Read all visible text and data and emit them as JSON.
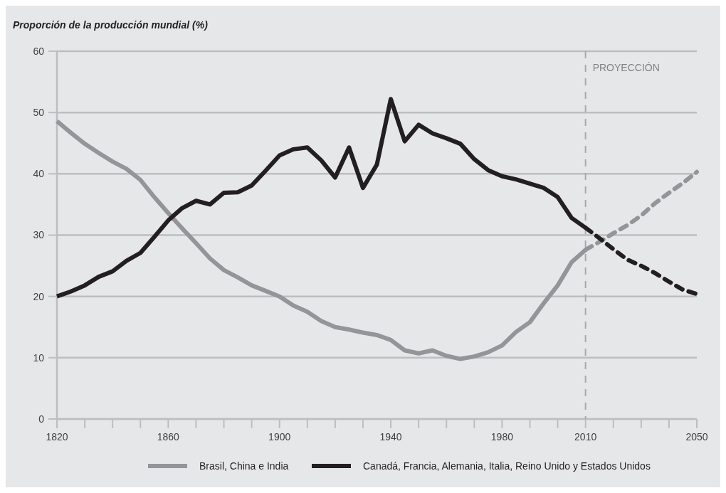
{
  "chart_data": {
    "type": "line",
    "ylabel": "Proporción de la producción mundial (%)",
    "xlim": [
      1820,
      2050
    ],
    "ylim": [
      0,
      60
    ],
    "xticks": [
      1820,
      {
        "value": 1830,
        "label": null
      },
      {
        "value": 1840,
        "label": null
      },
      {
        "value": 1850,
        "label": null
      },
      1860,
      {
        "value": 1870,
        "label": null
      },
      {
        "value": 1880,
        "label": null
      },
      {
        "value": 1890,
        "label": null
      },
      1900,
      {
        "value": 1910,
        "label": null
      },
      {
        "value": 1920,
        "label": null
      },
      {
        "value": 1930,
        "label": null
      },
      1940,
      {
        "value": 1950,
        "label": null
      },
      {
        "value": 1960,
        "label": null
      },
      {
        "value": 1970,
        "label": null
      },
      1980,
      {
        "value": 1990,
        "label": null
      },
      {
        "value": 2000,
        "label": null
      },
      2010,
      {
        "value": 2020,
        "label": null
      },
      {
        "value": 2030,
        "label": null
      },
      {
        "value": 2040,
        "label": null
      },
      2050
    ],
    "yticks": [
      0,
      10,
      20,
      30,
      40,
      50,
      60
    ],
    "grid": "y",
    "legend": "bottom",
    "marker": "none",
    "ref_lines": [
      {
        "axis": "x",
        "value": 2010,
        "label": "PROYECCIÓN",
        "color": "#a7a9ac",
        "line_style": "dashed"
      }
    ],
    "series": [
      {
        "name": "Brasil, China e India",
        "color": "#939598",
        "line_style": "solid",
        "x": [
          1820,
          1825,
          1830,
          1835,
          1840,
          1845,
          1850,
          1855,
          1860,
          1865,
          1870,
          1875,
          1880,
          1885,
          1890,
          1895,
          1900,
          1905,
          1910,
          1915,
          1920,
          1925,
          1930,
          1935,
          1940,
          1945,
          1950,
          1955,
          1960,
          1965,
          1970,
          1975,
          1980,
          1985,
          1990,
          1995,
          2000,
          2005,
          2010
        ],
        "values": [
          48.6,
          46.7,
          44.9,
          43.4,
          42.0,
          40.8,
          39.0,
          36.2,
          33.6,
          31.1,
          28.7,
          26.2,
          24.3,
          23.1,
          21.8,
          20.9,
          20.0,
          18.5,
          17.5,
          16.0,
          15.0,
          14.6,
          14.1,
          13.7,
          12.9,
          11.2,
          10.7,
          11.2,
          10.3,
          9.8,
          10.2,
          10.9,
          12.0,
          14.2,
          15.8,
          18.9,
          21.8,
          25.6,
          27.6
        ]
      },
      {
        "name": "Canadá, Francia, Alemania, Italia, Reino Unido y Estados Unidos",
        "color": "#231f20",
        "line_style": "solid",
        "x": [
          1820,
          1825,
          1830,
          1835,
          1840,
          1845,
          1850,
          1855,
          1860,
          1865,
          1870,
          1875,
          1880,
          1885,
          1890,
          1895,
          1900,
          1905,
          1910,
          1915,
          1920,
          1925,
          1930,
          1935,
          1940,
          1945,
          1950,
          1955,
          1960,
          1965,
          1970,
          1975,
          1980,
          1985,
          1990,
          1995,
          2000,
          2005,
          2010
        ],
        "values": [
          20.0,
          20.8,
          21.8,
          23.2,
          24.1,
          25.8,
          27.1,
          29.7,
          32.4,
          34.4,
          35.6,
          35.0,
          36.9,
          37.0,
          38.1,
          40.5,
          43.0,
          44.0,
          44.3,
          42.2,
          39.4,
          44.3,
          37.7,
          41.5,
          52.2,
          45.3,
          48.0,
          46.6,
          45.8,
          44.9,
          42.4,
          40.6,
          39.6,
          39.1,
          38.4,
          37.7,
          36.2,
          32.8,
          31.2
        ]
      },
      {
        "color": "#939598",
        "line_style": "dashed",
        "x": [
          2010,
          2015,
          2020,
          2025,
          2030,
          2035,
          2040,
          2045,
          2050
        ],
        "values": [
          27.6,
          28.9,
          30.3,
          31.6,
          33.2,
          35.2,
          36.9,
          38.5,
          40.3
        ]
      },
      {
        "color": "#231f20",
        "line_style": "dashed",
        "x": [
          2010,
          2015,
          2020,
          2025,
          2030,
          2035,
          2040,
          2045,
          2050
        ],
        "values": [
          31.2,
          29.5,
          27.7,
          26.0,
          25.0,
          23.8,
          22.4,
          21.1,
          20.4
        ]
      }
    ]
  }
}
